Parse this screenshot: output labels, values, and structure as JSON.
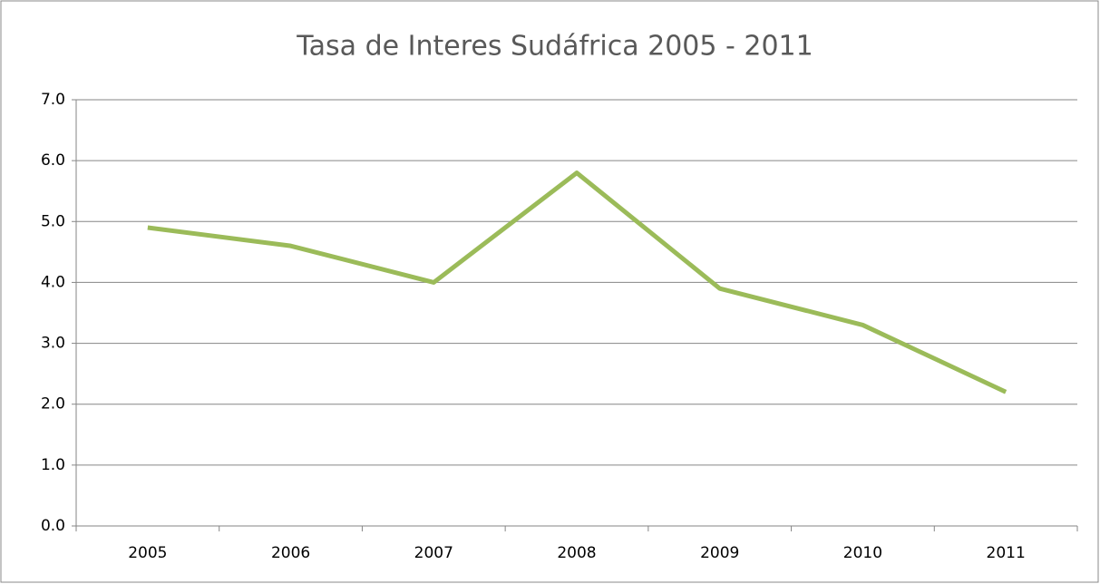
{
  "chart_data": {
    "type": "line",
    "title": "Tasa de Interes Sudáfrica 2005 - 2011",
    "categories": [
      "2005",
      "2006",
      "2007",
      "2008",
      "2009",
      "2010",
      "2011"
    ],
    "series": [
      {
        "color": "#9bbb59",
        "values": [
          4.9,
          4.6,
          4.0,
          5.8,
          3.9,
          3.3,
          2.2
        ]
      }
    ],
    "ylim": [
      0,
      7
    ],
    "yticks": [
      {
        "value": 0,
        "label": "0.0"
      },
      {
        "value": 1,
        "label": "1.0"
      },
      {
        "value": 2,
        "label": "2.0"
      },
      {
        "value": 3,
        "label": "3.0"
      },
      {
        "value": 4,
        "label": "4.0"
      },
      {
        "value": 5,
        "label": "5.0"
      },
      {
        "value": 6,
        "label": "6.0"
      },
      {
        "value": 7,
        "label": "7.0"
      }
    ],
    "grid": true
  }
}
